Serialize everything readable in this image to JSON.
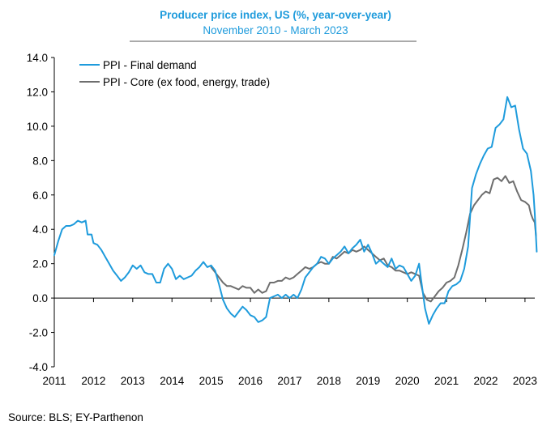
{
  "chart_data": {
    "type": "line",
    "title": "Producer price index, US (%,  year-over-year)",
    "subtitle": "November 2010 - March 2023",
    "source": "Source: BLS; EY-Parthenon",
    "colors": {
      "title": "#1E9BDC",
      "accent_rule": "#555555"
    },
    "x_ticks": [
      "2011",
      "2012",
      "2013",
      "2014",
      "2015",
      "2016",
      "2017",
      "2018",
      "2019",
      "2020",
      "2021",
      "2022",
      "2023"
    ],
    "y_ticks": [
      "14.0",
      "12.0",
      "10.0",
      "8.0",
      "6.0",
      "4.0",
      "2.0",
      "0.0",
      "-2.0",
      "-4.0"
    ],
    "ylim": [
      -4,
      14
    ],
    "xlim": [
      2011,
      2023.25
    ],
    "grid": false,
    "legend": "top-left",
    "series": [
      {
        "name": "PPI - Final demand",
        "color": "#1E9BDC",
        "points": [
          [
            2011.0,
            2.5
          ],
          [
            2011.1,
            3.3
          ],
          [
            2011.2,
            4.0
          ],
          [
            2011.3,
            4.2
          ],
          [
            2011.4,
            4.2
          ],
          [
            2011.5,
            4.3
          ],
          [
            2011.6,
            4.5
          ],
          [
            2011.7,
            4.4
          ],
          [
            2011.8,
            4.5
          ],
          [
            2011.85,
            3.7
          ],
          [
            2011.95,
            3.7
          ],
          [
            2012.0,
            3.2
          ],
          [
            2012.1,
            3.1
          ],
          [
            2012.2,
            2.8
          ],
          [
            2012.3,
            2.4
          ],
          [
            2012.4,
            2.0
          ],
          [
            2012.5,
            1.6
          ],
          [
            2012.6,
            1.3
          ],
          [
            2012.7,
            1.0
          ],
          [
            2012.8,
            1.2
          ],
          [
            2012.9,
            1.5
          ],
          [
            2013.0,
            1.9
          ],
          [
            2013.1,
            1.7
          ],
          [
            2013.2,
            1.9
          ],
          [
            2013.3,
            1.5
          ],
          [
            2013.4,
            1.4
          ],
          [
            2013.5,
            1.4
          ],
          [
            2013.6,
            0.9
          ],
          [
            2013.7,
            0.9
          ],
          [
            2013.8,
            1.7
          ],
          [
            2013.9,
            2.0
          ],
          [
            2014.0,
            1.7
          ],
          [
            2014.1,
            1.1
          ],
          [
            2014.2,
            1.3
          ],
          [
            2014.3,
            1.1
          ],
          [
            2014.4,
            1.2
          ],
          [
            2014.5,
            1.3
          ],
          [
            2014.6,
            1.6
          ],
          [
            2014.7,
            1.8
          ],
          [
            2014.8,
            2.1
          ],
          [
            2014.9,
            1.8
          ],
          [
            2015.0,
            1.9
          ],
          [
            2015.1,
            1.6
          ],
          [
            2015.2,
            0.8
          ],
          [
            2015.3,
            -0.1
          ],
          [
            2015.4,
            -0.6
          ],
          [
            2015.5,
            -0.9
          ],
          [
            2015.6,
            -1.1
          ],
          [
            2015.7,
            -0.8
          ],
          [
            2015.8,
            -0.5
          ],
          [
            2015.9,
            -0.7
          ],
          [
            2016.0,
            -1.0
          ],
          [
            2016.1,
            -1.1
          ],
          [
            2016.2,
            -1.4
          ],
          [
            2016.3,
            -1.3
          ],
          [
            2016.4,
            -1.1
          ],
          [
            2016.5,
            0.0
          ],
          [
            2016.6,
            0.1
          ],
          [
            2016.7,
            0.2
          ],
          [
            2016.8,
            0.0
          ],
          [
            2016.9,
            0.2
          ],
          [
            2017.0,
            0.0
          ],
          [
            2017.1,
            0.2
          ],
          [
            2017.2,
            0.0
          ],
          [
            2017.3,
            0.5
          ],
          [
            2017.4,
            1.2
          ],
          [
            2017.5,
            1.5
          ],
          [
            2017.6,
            1.8
          ],
          [
            2017.7,
            2.0
          ],
          [
            2017.8,
            2.4
          ],
          [
            2017.9,
            2.3
          ],
          [
            2018.0,
            2.0
          ],
          [
            2018.1,
            2.3
          ],
          [
            2018.2,
            2.5
          ],
          [
            2018.3,
            2.7
          ],
          [
            2018.4,
            3.0
          ],
          [
            2018.5,
            2.6
          ],
          [
            2018.6,
            2.9
          ],
          [
            2018.7,
            3.1
          ],
          [
            2018.8,
            3.4
          ],
          [
            2018.9,
            2.7
          ],
          [
            2019.0,
            3.1
          ],
          [
            2019.1,
            2.6
          ],
          [
            2019.2,
            2.0
          ],
          [
            2019.3,
            2.2
          ],
          [
            2019.4,
            2.0
          ],
          [
            2019.5,
            1.8
          ],
          [
            2019.6,
            2.3
          ],
          [
            2019.7,
            1.7
          ],
          [
            2019.8,
            1.9
          ],
          [
            2019.9,
            1.8
          ],
          [
            2020.0,
            1.4
          ],
          [
            2020.1,
            1.0
          ],
          [
            2020.2,
            1.3
          ],
          [
            2020.3,
            2.0
          ],
          [
            2020.35,
            1.1
          ],
          [
            2020.45,
            -0.6
          ],
          [
            2020.55,
            -1.5
          ],
          [
            2020.65,
            -1.0
          ],
          [
            2020.75,
            -0.6
          ],
          [
            2020.85,
            -0.3
          ],
          [
            2020.95,
            -0.3
          ],
          [
            2021.05,
            0.4
          ],
          [
            2021.15,
            0.7
          ],
          [
            2021.25,
            0.8
          ],
          [
            2021.35,
            1.0
          ],
          [
            2021.45,
            1.7
          ],
          [
            2021.55,
            3.0
          ],
          [
            2021.65,
            6.4
          ],
          [
            2021.75,
            7.2
          ],
          [
            2021.85,
            7.8
          ],
          [
            2021.95,
            8.3
          ],
          [
            2022.05,
            8.7
          ],
          [
            2022.15,
            8.8
          ],
          [
            2022.25,
            9.9
          ],
          [
            2022.35,
            10.1
          ],
          [
            2022.45,
            10.4
          ],
          [
            2022.55,
            11.7
          ],
          [
            2022.65,
            11.1
          ],
          [
            2022.75,
            11.2
          ],
          [
            2022.85,
            9.8
          ],
          [
            2022.95,
            8.7
          ],
          [
            2023.05,
            8.4
          ],
          [
            2023.15,
            7.4
          ],
          [
            2023.22,
            6.0
          ],
          [
            2023.25,
            4.9
          ],
          [
            2023.3,
            2.7
          ]
        ]
      },
      {
        "name": "PPI - Core (ex food, energy, trade)",
        "color": "#6E6E6E",
        "points": [
          [
            2015.0,
            1.8
          ],
          [
            2015.1,
            1.5
          ],
          [
            2015.2,
            1.2
          ],
          [
            2015.3,
            0.9
          ],
          [
            2015.4,
            0.7
          ],
          [
            2015.5,
            0.7
          ],
          [
            2015.6,
            0.6
          ],
          [
            2015.7,
            0.5
          ],
          [
            2015.8,
            0.7
          ],
          [
            2015.9,
            0.6
          ],
          [
            2016.0,
            0.6
          ],
          [
            2016.1,
            0.3
          ],
          [
            2016.2,
            0.5
          ],
          [
            2016.3,
            0.3
          ],
          [
            2016.4,
            0.4
          ],
          [
            2016.5,
            0.9
          ],
          [
            2016.6,
            0.9
          ],
          [
            2016.7,
            1.0
          ],
          [
            2016.8,
            1.0
          ],
          [
            2016.9,
            1.2
          ],
          [
            2017.0,
            1.1
          ],
          [
            2017.1,
            1.2
          ],
          [
            2017.2,
            1.4
          ],
          [
            2017.3,
            1.6
          ],
          [
            2017.4,
            1.8
          ],
          [
            2017.5,
            1.7
          ],
          [
            2017.6,
            1.8
          ],
          [
            2017.7,
            2.0
          ],
          [
            2017.8,
            2.1
          ],
          [
            2017.9,
            2.0
          ],
          [
            2018.0,
            2.0
          ],
          [
            2018.1,
            2.4
          ],
          [
            2018.2,
            2.3
          ],
          [
            2018.3,
            2.5
          ],
          [
            2018.4,
            2.7
          ],
          [
            2018.5,
            2.6
          ],
          [
            2018.6,
            2.8
          ],
          [
            2018.7,
            2.7
          ],
          [
            2018.8,
            2.8
          ],
          [
            2018.9,
            3.0
          ],
          [
            2019.0,
            2.8
          ],
          [
            2019.1,
            2.6
          ],
          [
            2019.2,
            2.4
          ],
          [
            2019.3,
            2.2
          ],
          [
            2019.4,
            2.3
          ],
          [
            2019.5,
            1.9
          ],
          [
            2019.6,
            1.8
          ],
          [
            2019.7,
            1.6
          ],
          [
            2019.8,
            1.6
          ],
          [
            2019.9,
            1.5
          ],
          [
            2020.0,
            1.4
          ],
          [
            2020.1,
            1.5
          ],
          [
            2020.2,
            1.4
          ],
          [
            2020.3,
            1.3
          ],
          [
            2020.4,
            0.3
          ],
          [
            2020.5,
            -0.1
          ],
          [
            2020.6,
            -0.2
          ],
          [
            2020.7,
            0.1
          ],
          [
            2020.8,
            0.4
          ],
          [
            2020.9,
            0.6
          ],
          [
            2021.0,
            0.9
          ],
          [
            2021.1,
            1.0
          ],
          [
            2021.2,
            1.2
          ],
          [
            2021.3,
            1.9
          ],
          [
            2021.4,
            2.8
          ],
          [
            2021.5,
            3.8
          ],
          [
            2021.6,
            4.9
          ],
          [
            2021.7,
            5.4
          ],
          [
            2021.8,
            5.7
          ],
          [
            2021.9,
            6.0
          ],
          [
            2022.0,
            6.2
          ],
          [
            2022.1,
            6.1
          ],
          [
            2022.2,
            6.9
          ],
          [
            2022.3,
            7.0
          ],
          [
            2022.4,
            6.8
          ],
          [
            2022.5,
            7.1
          ],
          [
            2022.6,
            6.7
          ],
          [
            2022.7,
            6.8
          ],
          [
            2022.8,
            6.2
          ],
          [
            2022.9,
            5.7
          ],
          [
            2023.0,
            5.6
          ],
          [
            2023.1,
            5.4
          ],
          [
            2023.15,
            4.9
          ],
          [
            2023.2,
            4.6
          ],
          [
            2023.25,
            4.4
          ],
          [
            2023.28,
            3.6
          ]
        ]
      }
    ]
  }
}
